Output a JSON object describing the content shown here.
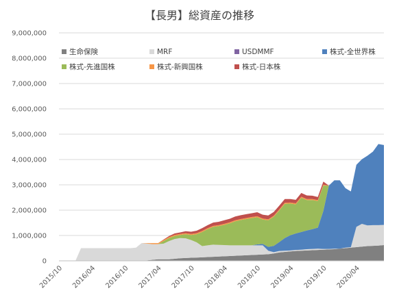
{
  "chart_data": {
    "type": "area",
    "stacked": true,
    "title": "【長男】総資産の推移",
    "xlabel": "",
    "ylabel": "",
    "ylim": [
      0,
      9000000
    ],
    "yticks": [
      0,
      1000000,
      2000000,
      3000000,
      4000000,
      5000000,
      6000000,
      7000000,
      8000000,
      9000000
    ],
    "ytick_labels": [
      "0",
      "1,000,000",
      "2,000,000",
      "3,000,000",
      "4,000,000",
      "5,000,000",
      "6,000,000",
      "7,000,000",
      "8,000,000",
      "9,000,000"
    ],
    "xtick_labels": [
      "2015/10",
      "2016/04",
      "2016/10",
      "2017/04",
      "2017/10",
      "2018/04",
      "2018/10",
      "2019/04",
      "2019/10",
      "2020/04"
    ],
    "grid": true,
    "legend_position": "top",
    "x": [
      "2015/10",
      "2015/11",
      "2015/12",
      "2016/01",
      "2016/02",
      "2016/03",
      "2016/04",
      "2016/05",
      "2016/06",
      "2016/07",
      "2016/08",
      "2016/09",
      "2016/10",
      "2016/11",
      "2016/12",
      "2017/01",
      "2017/02",
      "2017/03",
      "2017/04",
      "2017/05",
      "2017/06",
      "2017/07",
      "2017/08",
      "2017/09",
      "2017/10",
      "2017/11",
      "2017/12",
      "2018/01",
      "2018/02",
      "2018/03",
      "2018/04",
      "2018/05",
      "2018/06",
      "2018/07",
      "2018/08",
      "2018/09",
      "2018/10",
      "2018/11",
      "2018/12",
      "2019/01",
      "2019/02",
      "2019/03",
      "2019/04",
      "2019/05",
      "2019/06",
      "2019/07",
      "2019/08",
      "2019/09",
      "2019/10",
      "2019/11",
      "2019/12",
      "2020/01",
      "2020/02",
      "2020/03",
      "2020/04",
      "2020/05",
      "2020/06",
      "2020/07",
      "2020/08",
      "2020/09"
    ],
    "series": [
      {
        "name": "生命保険",
        "color": "#808080",
        "values": [
          0,
          0,
          0,
          0,
          0,
          0,
          0,
          0,
          0,
          0,
          0,
          0,
          0,
          0,
          0,
          0,
          20000,
          40000,
          60000,
          60000,
          60000,
          80000,
          100000,
          110000,
          120000,
          130000,
          140000,
          150000,
          160000,
          170000,
          180000,
          190000,
          200000,
          210000,
          220000,
          230000,
          240000,
          250000,
          260000,
          290000,
          330000,
          350000,
          370000,
          390000,
          400000,
          410000,
          420000,
          430000,
          440000,
          450000,
          460000,
          480000,
          500000,
          520000,
          540000,
          560000,
          580000,
          590000,
          600000,
          620000
        ]
      },
      {
        "name": "MRF",
        "color": "#d9d9d9",
        "values": [
          0,
          0,
          0,
          0,
          500000,
          500000,
          500000,
          500000,
          500000,
          500000,
          500000,
          500000,
          500000,
          500000,
          520000,
          700000,
          660000,
          620000,
          600000,
          620000,
          720000,
          780000,
          800000,
          780000,
          700000,
          600000,
          440000,
          460000,
          480000,
          460000,
          440000,
          420000,
          410000,
          400000,
          390000,
          380000,
          370000,
          360000,
          140000,
          50000,
          60000,
          50000,
          40000,
          40000,
          40000,
          50000,
          50000,
          50000,
          30000,
          20000,
          20000,
          0,
          20000,
          20000,
          800000,
          900000,
          820000,
          820000,
          810000,
          800000
        ]
      },
      {
        "name": "USDMMF",
        "color": "#8064a2",
        "values": [
          0,
          0,
          0,
          0,
          0,
          0,
          0,
          0,
          0,
          0,
          0,
          0,
          0,
          0,
          0,
          0,
          0,
          0,
          0,
          0,
          0,
          0,
          0,
          0,
          0,
          0,
          0,
          0,
          0,
          0,
          0,
          0,
          0,
          0,
          0,
          0,
          0,
          0,
          0,
          0,
          0,
          0,
          0,
          0,
          0,
          0,
          0,
          0,
          0,
          0,
          0,
          0,
          0,
          0,
          0,
          0,
          0,
          0,
          0,
          0
        ]
      },
      {
        "name": "株式-全世界株",
        "color": "#4f81bd",
        "values": [
          0,
          0,
          0,
          0,
          0,
          0,
          0,
          0,
          0,
          0,
          0,
          0,
          0,
          0,
          0,
          0,
          0,
          0,
          0,
          0,
          0,
          0,
          0,
          0,
          0,
          0,
          0,
          0,
          0,
          0,
          0,
          0,
          0,
          0,
          0,
          0,
          40000,
          60000,
          150000,
          250000,
          350000,
          500000,
          600000,
          650000,
          700000,
          740000,
          780000,
          830000,
          1500000,
          2500000,
          2700000,
          2700000,
          2350000,
          2200000,
          2450000,
          2550000,
          2750000,
          2900000,
          3200000,
          3150000
        ]
      },
      {
        "name": "株式-先進国株",
        "color": "#9bbb59",
        "values": [
          0,
          0,
          0,
          0,
          0,
          0,
          0,
          0,
          0,
          0,
          0,
          0,
          0,
          0,
          0,
          0,
          0,
          0,
          0,
          100000,
          120000,
          120000,
          120000,
          160000,
          200000,
          320000,
          560000,
          640000,
          700000,
          740000,
          800000,
          870000,
          950000,
          1000000,
          1040000,
          1080000,
          1070000,
          960000,
          1050000,
          1150000,
          1250000,
          1350000,
          1250000,
          1150000,
          1350000,
          1200000,
          1150000,
          1050000,
          1000000,
          0,
          0,
          0,
          0,
          0,
          0,
          0,
          0,
          0,
          0,
          0
        ]
      },
      {
        "name": "株式-新興国株",
        "color": "#f79646",
        "values": [
          0,
          0,
          0,
          0,
          0,
          0,
          0,
          0,
          0,
          0,
          0,
          0,
          0,
          0,
          0,
          0,
          20000,
          40000,
          40000,
          40000,
          40000,
          40000,
          40000,
          40000,
          40000,
          40000,
          40000,
          40000,
          40000,
          40000,
          40000,
          40000,
          40000,
          40000,
          40000,
          40000,
          40000,
          40000,
          40000,
          40000,
          40000,
          40000,
          40000,
          40000,
          40000,
          40000,
          40000,
          40000,
          40000,
          0,
          0,
          0,
          0,
          0,
          0,
          0,
          0,
          0,
          0,
          0
        ]
      },
      {
        "name": "株式-日本株",
        "color": "#c0504d",
        "values": [
          0,
          0,
          0,
          0,
          0,
          0,
          0,
          0,
          0,
          0,
          0,
          0,
          0,
          0,
          0,
          0,
          0,
          0,
          0,
          20000,
          40000,
          60000,
          60000,
          80000,
          90000,
          100000,
          110000,
          120000,
          130000,
          130000,
          140000,
          140000,
          150000,
          150000,
          150000,
          150000,
          160000,
          150000,
          150000,
          150000,
          150000,
          150000,
          140000,
          140000,
          150000,
          140000,
          130000,
          120000,
          120000,
          0,
          0,
          0,
          0,
          0,
          0,
          0,
          0,
          0,
          0,
          0
        ]
      }
    ]
  }
}
